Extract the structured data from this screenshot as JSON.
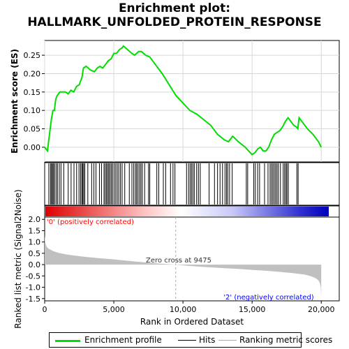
{
  "title_line1": "Enrichment plot:",
  "title_line2": "HALLMARK_UNFOLDED_PROTEIN_RESPONSE",
  "colors": {
    "es_line": "#00dd00",
    "hits": "#000000",
    "metric_fill": "#c0c0c0",
    "positive_label": "#ff0000",
    "negative_label": "#0000ff",
    "zero_cross_line": "#aaaaaa",
    "heat_pos": "#ee0000",
    "heat_neg": "#0000cc"
  },
  "legend": {
    "es": "Enrichment profile",
    "hits": "Hits",
    "metric": "Ranking metric scores"
  },
  "annotations": {
    "positive": "'0' (positively correlated)",
    "negative": "'2' (negatively correlated)",
    "zero_cross": "Zero cross at 9475"
  },
  "chart_data": {
    "type": "line",
    "panels": {
      "es": {
        "ylabel": "Enrichment score (ES)",
        "ylim": [
          -0.04,
          0.29
        ],
        "yticks": [
          "0.00",
          "0.05",
          "0.10",
          "0.15",
          "0.20",
          "0.25"
        ],
        "ytick_values": [
          0.0,
          0.05,
          0.1,
          0.15,
          0.2,
          0.25
        ],
        "grid": true
      },
      "metric": {
        "ylabel": "Ranked list metric (Signal2Noise)",
        "ylim": [
          -1.6,
          2.1
        ],
        "yticks": [
          "2.0",
          "1.5",
          "1.0",
          "0.5",
          "0.0",
          "-0.5",
          "-1.0",
          "-1.5"
        ],
        "ytick_values": [
          2.0,
          1.5,
          1.0,
          0.5,
          0.0,
          -0.5,
          -1.0,
          -1.5
        ],
        "zero_cross_rank": 9475
      }
    },
    "xlabel": "Rank in Ordered Dataset",
    "xlim": [
      0,
      21300
    ],
    "xticks": [
      "0",
      "5,000",
      "10,000",
      "15,000",
      "20,000"
    ],
    "xtick_values": [
      0,
      5000,
      10000,
      15000,
      20000
    ],
    "es_profile": {
      "x": [
        0,
        200,
        300,
        400,
        500,
        600,
        700,
        800,
        900,
        1100,
        1300,
        1500,
        1700,
        1900,
        2100,
        2300,
        2500,
        2700,
        2800,
        3000,
        3300,
        3600,
        3800,
        4000,
        4200,
        4400,
        4600,
        4800,
        5000,
        5200,
        5400,
        5600,
        5700,
        6000,
        6300,
        6500,
        6800,
        7000,
        7300,
        7600,
        8000,
        8500,
        9000,
        9500,
        10000,
        10500,
        11000,
        11500,
        12000,
        12500,
        13000,
        13300,
        13600,
        14000,
        14500,
        15000,
        15200,
        15400,
        15600,
        15800,
        16000,
        16200,
        16400,
        16600,
        16800,
        17000,
        17200,
        17400,
        17600,
        17800,
        18000,
        18200,
        18300,
        18400,
        18600,
        18800,
        19000,
        19400,
        19800,
        20000
      ],
      "y": [
        0.0,
        -0.01,
        0.02,
        0.05,
        0.08,
        0.1,
        0.1,
        0.13,
        0.14,
        0.15,
        0.15,
        0.15,
        0.145,
        0.155,
        0.15,
        0.165,
        0.17,
        0.19,
        0.215,
        0.22,
        0.21,
        0.205,
        0.215,
        0.22,
        0.215,
        0.225,
        0.235,
        0.24,
        0.255,
        0.255,
        0.265,
        0.27,
        0.275,
        0.265,
        0.255,
        0.25,
        0.26,
        0.26,
        0.25,
        0.245,
        0.225,
        0.2,
        0.17,
        0.14,
        0.12,
        0.1,
        0.09,
        0.075,
        0.06,
        0.035,
        0.02,
        0.015,
        0.03,
        0.015,
        0.0,
        -0.02,
        -0.015,
        -0.005,
        0.0,
        -0.01,
        -0.01,
        0.0,
        0.02,
        0.035,
        0.04,
        0.045,
        0.055,
        0.07,
        0.08,
        0.07,
        0.06,
        0.055,
        0.05,
        0.08,
        0.07,
        0.06,
        0.05,
        0.035,
        0.015,
        0.0
      ]
    },
    "hits": [
      300,
      420,
      500,
      560,
      640,
      720,
      830,
      930,
      1060,
      1180,
      1380,
      1700,
      1910,
      2120,
      2310,
      2480,
      2590,
      2680,
      2750,
      2820,
      2900,
      3120,
      3400,
      3560,
      3710,
      3960,
      4110,
      4290,
      4380,
      4470,
      4560,
      4640,
      4730,
      4820,
      4920,
      5030,
      5140,
      5250,
      5360,
      5480,
      5600,
      5790,
      6120,
      6310,
      6440,
      6560,
      6650,
      6750,
      6860,
      6960,
      7060,
      7230,
      7510,
      7600,
      8110,
      8250,
      8580,
      8750,
      9100,
      9280,
      9420,
      10260,
      10410,
      10520,
      10620,
      10720,
      10820,
      10990,
      11120,
      11250,
      11890,
      12280,
      12500,
      12680,
      12860,
      13040,
      13150,
      13240,
      13370,
      13560,
      14580,
      14680,
      15120,
      15230,
      15400,
      15540,
      15900,
      16150,
      16300,
      16400,
      16500,
      16600,
      16700,
      16800,
      16900,
      17050,
      17250,
      17350,
      17450,
      17520,
      17620,
      18240,
      18330
    ],
    "metric_curve": {
      "rank": [
        0,
        50,
        150,
        300,
        600,
        1000,
        1500,
        2000,
        3000,
        4000,
        5000,
        6000,
        7000,
        8000,
        9000,
        9475,
        10000,
        11000,
        12000,
        13000,
        14000,
        15000,
        16000,
        17000,
        18000,
        18800,
        19300,
        19600,
        19800,
        19900,
        19960,
        20000
      ],
      "value": [
        1.3,
        0.95,
        0.78,
        0.7,
        0.6,
        0.52,
        0.46,
        0.41,
        0.34,
        0.28,
        0.23,
        0.17,
        0.11,
        0.06,
        0.02,
        0.0,
        -0.03,
        -0.08,
        -0.12,
        -0.16,
        -0.19,
        -0.23,
        -0.27,
        -0.32,
        -0.38,
        -0.44,
        -0.52,
        -0.6,
        -0.7,
        -0.82,
        -1.0,
        -1.45
      ]
    }
  }
}
